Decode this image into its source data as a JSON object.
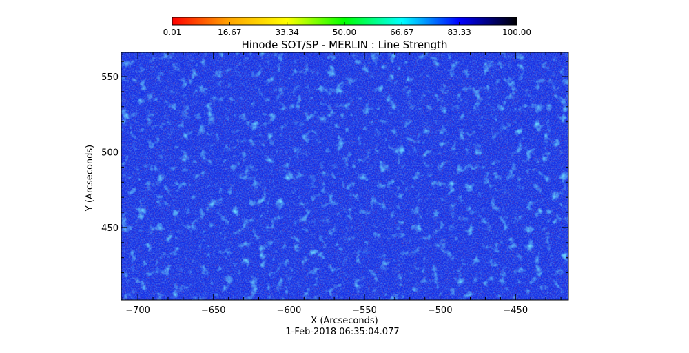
{
  "chart_data": {
    "type": "heatmap",
    "title": "Hinode SOT/SP - MERLIN : Line Strength",
    "xlabel": "X (Arcseconds)",
    "ylabel": "Y (Arcseconds)",
    "footer": "1-Feb-2018 06:35:04.077",
    "xlim": [
      -711,
      -415
    ],
    "ylim": [
      402,
      566
    ],
    "x_ticks": [
      -700,
      -650,
      -600,
      -550,
      -500,
      -450
    ],
    "y_ticks": [
      450,
      500,
      550
    ],
    "colorbar": {
      "range": [
        0.01,
        100.0
      ],
      "tick_values": [
        0.01,
        16.67,
        33.34,
        50.0,
        66.67,
        83.33,
        100.0
      ],
      "tick_labels": [
        "0.01",
        "16.67",
        "33.34",
        "50.00",
        "66.67",
        "83.33",
        "100.00"
      ],
      "colormap": [
        "#ff0000",
        "#ffa500",
        "#ffff00",
        "#00ff00",
        "#00ffff",
        "#0000ff",
        "#000000"
      ]
    },
    "field": {
      "dominant_value": 80,
      "dominant_color": "#1530e6",
      "description_colors": [
        "#0f1fd9",
        "#1a3cf0",
        "#0a0a7a",
        "#5a0a3a",
        "#3aa0ff",
        "#20e0ff"
      ]
    }
  }
}
